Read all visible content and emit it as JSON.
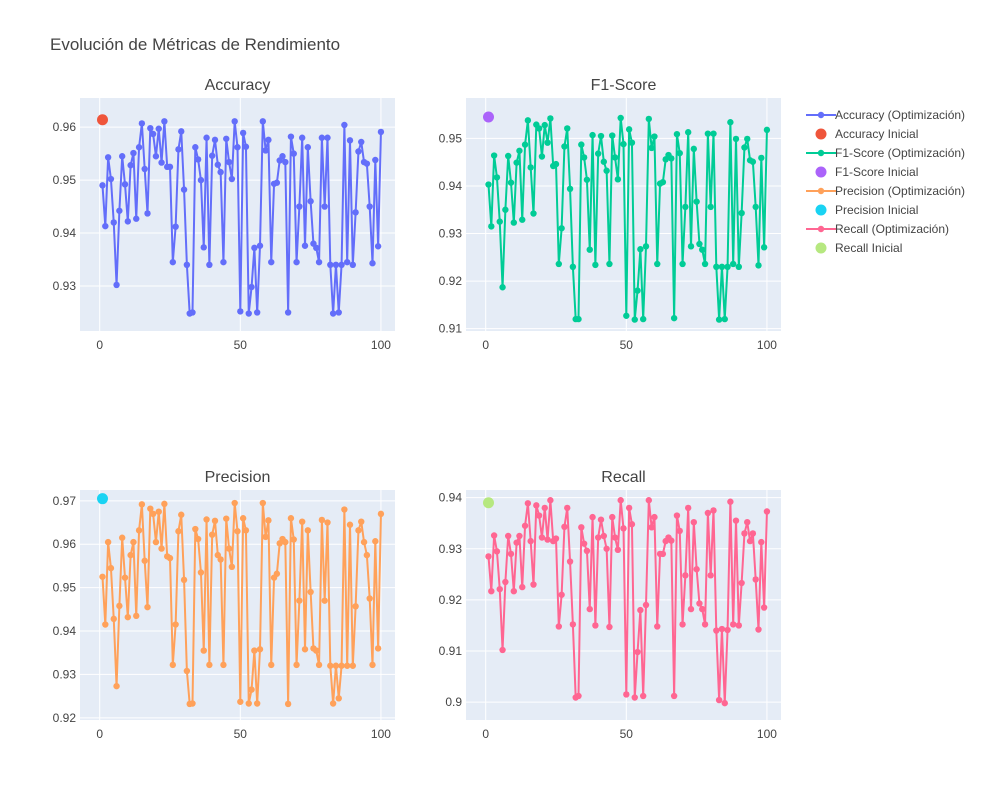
{
  "title": "Evolución de Métricas de Rendimiento",
  "colors": {
    "plot_bg": "#e5ecf6",
    "grid": "#ffffff",
    "text": "#444444"
  },
  "legend": {
    "placement": "right",
    "items": [
      {
        "label": "Accuracy (Optimización)",
        "kind": "line",
        "color": "#636efa"
      },
      {
        "label": "Accuracy Inicial",
        "kind": "marker",
        "color": "#ef553b"
      },
      {
        "label": "F1-Score (Optimización)",
        "kind": "line",
        "color": "#00cc96"
      },
      {
        "label": "F1-Score Inicial",
        "kind": "marker",
        "color": "#ab63fa"
      },
      {
        "label": "Precision (Optimización)",
        "kind": "line",
        "color": "#ffa15a"
      },
      {
        "label": "Precision Inicial",
        "kind": "marker",
        "color": "#19d3f3"
      },
      {
        "label": "Recall (Optimización)",
        "kind": "line",
        "color": "#ff6692"
      },
      {
        "label": "Recall Inicial",
        "kind": "marker",
        "color": "#b6e880"
      }
    ]
  },
  "chart_data": [
    {
      "type": "line",
      "title": "Accuracy",
      "xlim": [
        -7,
        105
      ],
      "ylim": [
        0.9215,
        0.9655
      ],
      "xticks": [
        0,
        50,
        100
      ],
      "yticks": [
        0.93,
        0.94,
        0.95,
        0.96
      ],
      "grid": true,
      "series": [
        {
          "name": "Accuracy (Optimización)",
          "color": "#636efa",
          "x": [
            1,
            2,
            3,
            4,
            5,
            6,
            7,
            8,
            9,
            10,
            11,
            12,
            13,
            14,
            15,
            16,
            17,
            18,
            19,
            20,
            21,
            22,
            23,
            24,
            25,
            26,
            27,
            28,
            29,
            30,
            31,
            32,
            33,
            34,
            35,
            36,
            37,
            38,
            39,
            40,
            41,
            42,
            43,
            44,
            45,
            46,
            47,
            48,
            49,
            50,
            51,
            52,
            53,
            54,
            55,
            56,
            57,
            58,
            59,
            60,
            61,
            62,
            63,
            64,
            65,
            66,
            67,
            68,
            69,
            70,
            71,
            72,
            73,
            74,
            75,
            76,
            77,
            78,
            79,
            80,
            81,
            82,
            83,
            84,
            85,
            86,
            87,
            88,
            89,
            90,
            91,
            92,
            93,
            94,
            95,
            96,
            97,
            98,
            99,
            100
          ],
          "y": [
            0.949,
            0.9413,
            0.9543,
            0.9502,
            0.942,
            0.9302,
            0.9442,
            0.9545,
            0.9492,
            0.9422,
            0.9528,
            0.9551,
            0.9427,
            0.9562,
            0.9607,
            0.9521,
            0.9437,
            0.9598,
            0.9587,
            0.9545,
            0.9597,
            0.9533,
            0.9611,
            0.9525,
            0.9525,
            0.9345,
            0.9412,
            0.9558,
            0.9592,
            0.9482,
            0.934,
            0.9248,
            0.925,
            0.9562,
            0.9539,
            0.95,
            0.9373,
            0.958,
            0.934,
            0.9546,
            0.9576,
            0.9529,
            0.9515,
            0.9345,
            0.9578,
            0.9534,
            0.9502,
            0.9611,
            0.9562,
            0.9252,
            0.9589,
            0.9563,
            0.9248,
            0.9298,
            0.9372,
            0.925,
            0.9376,
            0.9611,
            0.9556,
            0.9576,
            0.9345,
            0.9493,
            0.9495,
            0.9537,
            0.9545,
            0.9534,
            0.925,
            0.9582,
            0.955,
            0.9345,
            0.945,
            0.958,
            0.9376,
            0.9562,
            0.946,
            0.938,
            0.9372,
            0.9345,
            0.958,
            0.945,
            0.958,
            0.934,
            0.9248,
            0.934,
            0.925,
            0.934,
            0.9604,
            0.9345,
            0.9575,
            0.934,
            0.9439,
            0.9554,
            0.9572,
            0.9534,
            0.9531,
            0.945,
            0.9343,
            0.9538,
            0.9375,
            0.9591
          ]
        },
        {
          "name": "Accuracy Inicial",
          "color": "#ef553b",
          "marker": true,
          "x": [
            1
          ],
          "y": [
            0.9614
          ]
        }
      ]
    },
    {
      "type": "line",
      "title": "F1-Score",
      "xlim": [
        -7,
        105
      ],
      "ylim": [
        0.9095,
        0.9585
      ],
      "xticks": [
        0,
        50,
        100
      ],
      "yticks": [
        0.91,
        0.92,
        0.93,
        0.94,
        0.95
      ],
      "grid": true,
      "series": [
        {
          "name": "F1-Score (Optimización)",
          "color": "#00cc96",
          "x": [
            1,
            2,
            3,
            4,
            5,
            6,
            7,
            8,
            9,
            10,
            11,
            12,
            13,
            14,
            15,
            16,
            17,
            18,
            19,
            20,
            21,
            22,
            23,
            24,
            25,
            26,
            27,
            28,
            29,
            30,
            31,
            32,
            33,
            34,
            35,
            36,
            37,
            38,
            39,
            40,
            41,
            42,
            43,
            44,
            45,
            46,
            47,
            48,
            49,
            50,
            51,
            52,
            53,
            54,
            55,
            56,
            57,
            58,
            59,
            60,
            61,
            62,
            63,
            64,
            65,
            66,
            67,
            68,
            69,
            70,
            71,
            72,
            73,
            74,
            75,
            76,
            77,
            78,
            79,
            80,
            81,
            82,
            83,
            84,
            85,
            86,
            87,
            88,
            89,
            90,
            91,
            92,
            93,
            94,
            95,
            96,
            97,
            98,
            99,
            100
          ],
          "y": [
            0.9403,
            0.9315,
            0.9464,
            0.9418,
            0.9325,
            0.9187,
            0.935,
            0.9463,
            0.9407,
            0.9323,
            0.9449,
            0.9474,
            0.9329,
            0.9487,
            0.9538,
            0.9439,
            0.9342,
            0.9529,
            0.9521,
            0.9462,
            0.9528,
            0.9491,
            0.9542,
            0.9442,
            0.9446,
            0.9236,
            0.9311,
            0.9483,
            0.9521,
            0.9394,
            0.923,
            0.912,
            0.912,
            0.9487,
            0.946,
            0.9413,
            0.9266,
            0.9507,
            0.9234,
            0.9468,
            0.9505,
            0.9451,
            0.9432,
            0.9236,
            0.9506,
            0.946,
            0.9414,
            0.9543,
            0.9488,
            0.9127,
            0.9519,
            0.9491,
            0.9119,
            0.918,
            0.9267,
            0.912,
            0.9273,
            0.9541,
            0.948,
            0.9504,
            0.9236,
            0.9405,
            0.9408,
            0.9456,
            0.9465,
            0.9458,
            0.9122,
            0.9509,
            0.9469,
            0.9236,
            0.9356,
            0.9513,
            0.9273,
            0.9478,
            0.9367,
            0.9278,
            0.9266,
            0.9236,
            0.951,
            0.9356,
            0.951,
            0.923,
            0.9119,
            0.923,
            0.912,
            0.923,
            0.9534,
            0.9236,
            0.9499,
            0.923,
            0.9343,
            0.9481,
            0.9499,
            0.9454,
            0.9451,
            0.9356,
            0.9233,
            0.9459,
            0.9271,
            0.9518
          ]
        },
        {
          "name": "F1-Score Inicial",
          "color": "#ab63fa",
          "marker": true,
          "x": [
            1
          ],
          "y": [
            0.9545
          ]
        }
      ]
    },
    {
      "type": "line",
      "title": "Precision",
      "xlim": [
        -7,
        105
      ],
      "ylim": [
        0.9195,
        0.9725
      ],
      "xticks": [
        0,
        50,
        100
      ],
      "yticks": [
        0.92,
        0.93,
        0.94,
        0.95,
        0.96,
        0.97
      ],
      "grid": true,
      "series": [
        {
          "name": "Precision (Optimización)",
          "color": "#ffa15a",
          "x": [
            1,
            2,
            3,
            4,
            5,
            6,
            7,
            8,
            9,
            10,
            11,
            12,
            13,
            14,
            15,
            16,
            17,
            18,
            19,
            20,
            21,
            22,
            23,
            24,
            25,
            26,
            27,
            28,
            29,
            30,
            31,
            32,
            33,
            34,
            35,
            36,
            37,
            38,
            39,
            40,
            41,
            42,
            43,
            44,
            45,
            46,
            47,
            48,
            49,
            50,
            51,
            52,
            53,
            54,
            55,
            56,
            57,
            58,
            59,
            60,
            61,
            62,
            63,
            64,
            65,
            66,
            67,
            68,
            69,
            70,
            71,
            72,
            73,
            74,
            75,
            76,
            77,
            78,
            79,
            80,
            81,
            82,
            83,
            84,
            85,
            86,
            87,
            88,
            89,
            90,
            91,
            92,
            93,
            94,
            95,
            96,
            97,
            98,
            99,
            100
          ],
          "y": [
            0.9525,
            0.9415,
            0.9605,
            0.9545,
            0.9428,
            0.9273,
            0.9458,
            0.9615,
            0.9523,
            0.9432,
            0.9575,
            0.9605,
            0.9435,
            0.9632,
            0.9692,
            0.9562,
            0.9455,
            0.9682,
            0.967,
            0.9605,
            0.9675,
            0.959,
            0.9693,
            0.9572,
            0.9568,
            0.9322,
            0.9415,
            0.963,
            0.9668,
            0.9518,
            0.9308,
            0.9232,
            0.9233,
            0.9635,
            0.9612,
            0.9535,
            0.9355,
            0.9657,
            0.9322,
            0.9622,
            0.9654,
            0.9575,
            0.9565,
            0.9322,
            0.9659,
            0.959,
            0.9548,
            0.9695,
            0.963,
            0.9237,
            0.966,
            0.9632,
            0.9233,
            0.9265,
            0.9355,
            0.9233,
            0.9358,
            0.9695,
            0.9617,
            0.9655,
            0.9322,
            0.9523,
            0.9532,
            0.9602,
            0.9612,
            0.9605,
            0.9232,
            0.966,
            0.9611,
            0.9322,
            0.947,
            0.9652,
            0.9358,
            0.9632,
            0.949,
            0.936,
            0.9355,
            0.9322,
            0.9656,
            0.947,
            0.965,
            0.932,
            0.9233,
            0.932,
            0.9245,
            0.932,
            0.968,
            0.932,
            0.9645,
            0.932,
            0.9457,
            0.9632,
            0.9652,
            0.9605,
            0.9575,
            0.9475,
            0.9322,
            0.9607,
            0.936,
            0.967
          ]
        },
        {
          "name": "Precision Inicial",
          "color": "#19d3f3",
          "marker": true,
          "x": [
            1
          ],
          "y": [
            0.9705
          ]
        }
      ]
    },
    {
      "type": "line",
      "title": "Recall",
      "xlim": [
        -7,
        105
      ],
      "ylim": [
        0.8965,
        0.9415
      ],
      "xticks": [
        0,
        50,
        100
      ],
      "yticks": [
        0.9,
        0.91,
        0.92,
        0.93,
        0.94
      ],
      "grid": true,
      "series": [
        {
          "name": "Recall (Optimización)",
          "color": "#ff6692",
          "x": [
            1,
            2,
            3,
            4,
            5,
            6,
            7,
            8,
            9,
            10,
            11,
            12,
            13,
            14,
            15,
            16,
            17,
            18,
            19,
            20,
            21,
            22,
            23,
            24,
            25,
            26,
            27,
            28,
            29,
            30,
            31,
            32,
            33,
            34,
            35,
            36,
            37,
            38,
            39,
            40,
            41,
            42,
            43,
            44,
            45,
            46,
            47,
            48,
            49,
            50,
            51,
            52,
            53,
            54,
            55,
            56,
            57,
            58,
            59,
            60,
            61,
            62,
            63,
            64,
            65,
            66,
            67,
            68,
            69,
            70,
            71,
            72,
            73,
            74,
            75,
            76,
            77,
            78,
            79,
            80,
            81,
            82,
            83,
            84,
            85,
            86,
            87,
            88,
            89,
            90,
            91,
            92,
            93,
            94,
            95,
            96,
            97,
            98,
            99,
            100
          ],
          "y": [
            0.9285,
            0.9217,
            0.9326,
            0.9295,
            0.9221,
            0.9102,
            0.9235,
            0.9325,
            0.929,
            0.9217,
            0.9312,
            0.9325,
            0.9225,
            0.9345,
            0.9389,
            0.9315,
            0.923,
            0.9385,
            0.9365,
            0.9322,
            0.938,
            0.9318,
            0.9395,
            0.9315,
            0.932,
            0.9148,
            0.921,
            0.9343,
            0.938,
            0.9275,
            0.9152,
            0.9009,
            0.9012,
            0.9342,
            0.931,
            0.9296,
            0.9182,
            0.9362,
            0.915,
            0.9322,
            0.9357,
            0.9325,
            0.93,
            0.9147,
            0.9362,
            0.9322,
            0.9298,
            0.9395,
            0.934,
            0.9015,
            0.938,
            0.9348,
            0.9009,
            0.9098,
            0.918,
            0.9012,
            0.919,
            0.9395,
            0.9342,
            0.9362,
            0.9148,
            0.929,
            0.929,
            0.9315,
            0.9322,
            0.9316,
            0.9012,
            0.9365,
            0.9335,
            0.9152,
            0.9248,
            0.938,
            0.9182,
            0.9352,
            0.926,
            0.9193,
            0.9182,
            0.9152,
            0.937,
            0.9248,
            0.9375,
            0.914,
            0.9004,
            0.9143,
            0.8998,
            0.9141,
            0.9392,
            0.9152,
            0.9355,
            0.915,
            0.9233,
            0.933,
            0.9352,
            0.9315,
            0.933,
            0.924,
            0.9142,
            0.9313,
            0.9185,
            0.9373
          ]
        },
        {
          "name": "Recall Inicial",
          "color": "#b6e880",
          "marker": true,
          "x": [
            1
          ],
          "y": [
            0.939
          ]
        }
      ]
    }
  ]
}
